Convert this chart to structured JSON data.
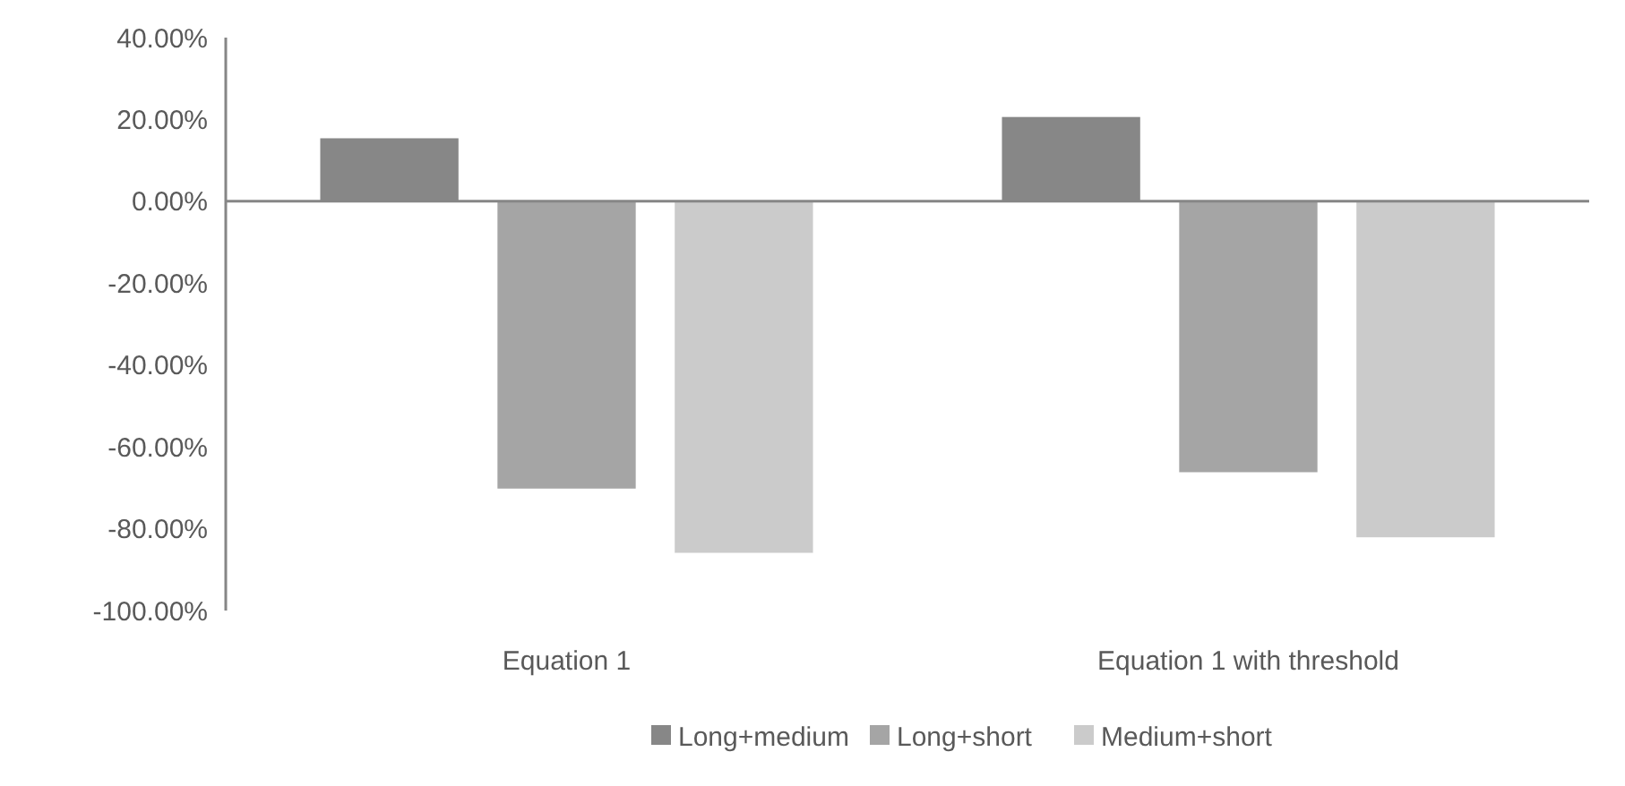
{
  "chart_data": {
    "type": "bar",
    "categories": [
      "Equation 1",
      "Equation 1 with threshold"
    ],
    "series": [
      {
        "name": "Long+medium",
        "color": "#878787",
        "values": [
          15.4,
          20.6
        ]
      },
      {
        "name": "Long+short",
        "color": "#a5a5a5",
        "values": [
          -70.2,
          -66.2
        ]
      },
      {
        "name": "Medium+short",
        "color": "#cbcbcb",
        "values": [
          -85.9,
          -82.1
        ]
      }
    ],
    "ylim": [
      -100,
      40
    ],
    "yticks": [
      {
        "value": 40,
        "label": "40.00%"
      },
      {
        "value": 20,
        "label": "20.00%"
      },
      {
        "value": 0,
        "label": "0.00%"
      },
      {
        "value": -20,
        "label": "-20.00%"
      },
      {
        "value": -40,
        "label": "-40.00%"
      },
      {
        "value": -60,
        "label": "-60.00%"
      },
      {
        "value": -80,
        "label": "-80.00%"
      },
      {
        "value": -100,
        "label": "-100.00%"
      }
    ],
    "legend": "bottom"
  }
}
